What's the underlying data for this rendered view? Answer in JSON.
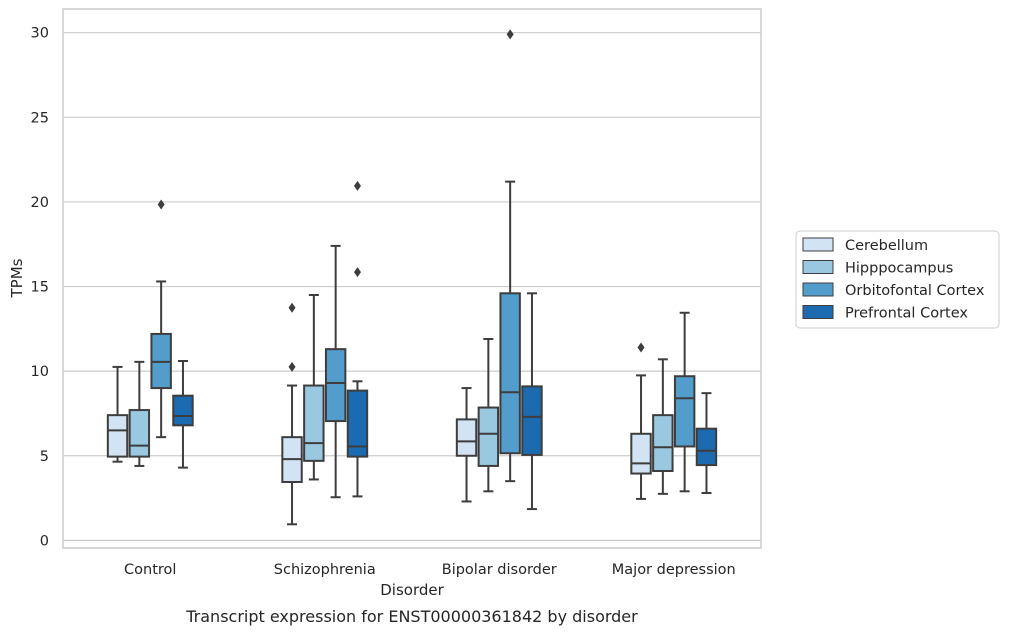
{
  "chart_data": {
    "type": "box",
    "xlabel": "Disorder",
    "ylabel": "TPMs",
    "caption": "Transcript expression for ENST00000361842 by disorder",
    "categories": [
      "Control",
      "Schizophrenia",
      "Bipolar disorder",
      "Major depression"
    ],
    "yticks": [
      0,
      5,
      10,
      15,
      20,
      25,
      30
    ],
    "ylim": [
      -0.45,
      31.4
    ],
    "grid": "horizontal",
    "legend_position": "right",
    "series": [
      {
        "name": "Cerebellum",
        "color": "#d2e3f3",
        "boxes": [
          {
            "whisker_low": 4.65,
            "q1": 4.95,
            "median": 6.5,
            "q3": 7.4,
            "whisker_high": 10.25,
            "outliers": []
          },
          {
            "whisker_low": 0.95,
            "q1": 3.45,
            "median": 4.8,
            "q3": 6.1,
            "whisker_high": 9.15,
            "outliers": [
              10.25,
              13.75
            ]
          },
          {
            "whisker_low": 2.3,
            "q1": 5.0,
            "median": 5.85,
            "q3": 7.15,
            "whisker_high": 9.0,
            "outliers": []
          },
          {
            "whisker_low": 2.45,
            "q1": 3.95,
            "median": 4.55,
            "q3": 6.3,
            "whisker_high": 9.75,
            "outliers": [
              11.4
            ]
          }
        ]
      },
      {
        "name": "Hipppocampus",
        "color": "#9ac8e0",
        "boxes": [
          {
            "whisker_low": 4.4,
            "q1": 4.95,
            "median": 5.6,
            "q3": 7.7,
            "whisker_high": 10.55,
            "outliers": []
          },
          {
            "whisker_low": 3.6,
            "q1": 4.7,
            "median": 5.75,
            "q3": 9.15,
            "whisker_high": 14.5,
            "outliers": []
          },
          {
            "whisker_low": 2.9,
            "q1": 4.4,
            "median": 6.3,
            "q3": 7.85,
            "whisker_high": 11.9,
            "outliers": []
          },
          {
            "whisker_low": 2.75,
            "q1": 4.1,
            "median": 5.5,
            "q3": 7.4,
            "whisker_high": 10.7,
            "outliers": []
          }
        ]
      },
      {
        "name": "Orbitofontal Cortex",
        "color": "#529dcc",
        "boxes": [
          {
            "whisker_low": 6.1,
            "q1": 9.0,
            "median": 10.55,
            "q3": 12.2,
            "whisker_high": 15.3,
            "outliers": [
              19.85
            ]
          },
          {
            "whisker_low": 2.55,
            "q1": 7.05,
            "median": 9.3,
            "q3": 11.3,
            "whisker_high": 17.4,
            "outliers": []
          },
          {
            "whisker_low": 3.5,
            "q1": 5.15,
            "median": 8.75,
            "q3": 14.6,
            "whisker_high": 21.2,
            "outliers": [
              29.9
            ]
          },
          {
            "whisker_low": 2.9,
            "q1": 5.55,
            "median": 8.4,
            "q3": 9.7,
            "whisker_high": 13.45,
            "outliers": []
          }
        ]
      },
      {
        "name": "Prefrontal Cortex",
        "color": "#1c6aaf",
        "boxes": [
          {
            "whisker_low": 4.3,
            "q1": 6.8,
            "median": 7.35,
            "q3": 8.55,
            "whisker_high": 10.6,
            "outliers": []
          },
          {
            "whisker_low": 2.6,
            "q1": 4.95,
            "median": 5.55,
            "q3": 8.85,
            "whisker_high": 9.4,
            "outliers": [
              15.85,
              20.95
            ]
          },
          {
            "whisker_low": 1.85,
            "q1": 5.05,
            "median": 7.3,
            "q3": 9.1,
            "whisker_high": 14.6,
            "outliers": []
          },
          {
            "whisker_low": 2.8,
            "q1": 4.45,
            "median": 5.3,
            "q3": 6.6,
            "whisker_high": 8.7,
            "outliers": []
          }
        ]
      }
    ]
  }
}
